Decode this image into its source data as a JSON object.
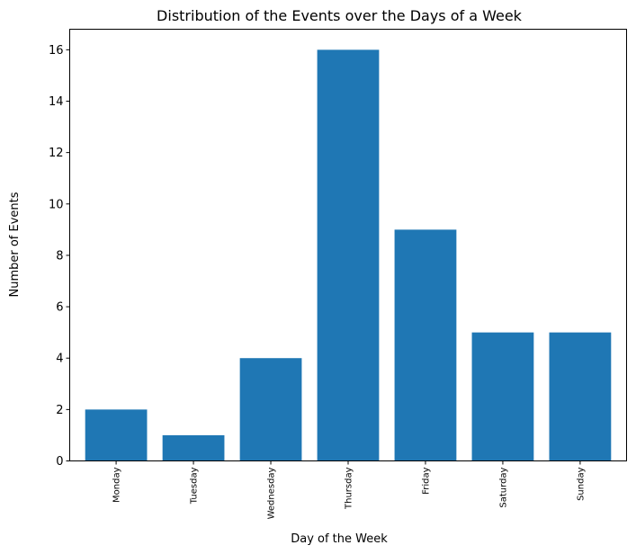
{
  "chart_data": {
    "type": "bar",
    "title": "Distribution of the Events over the Days of a Week",
    "xlabel": "Day of the Week",
    "ylabel": "Number of Events",
    "categories": [
      "Monday",
      "Tuesday",
      "Wednesday",
      "Thursday",
      "Friday",
      "Saturday",
      "Sunday"
    ],
    "values": [
      2,
      1,
      4,
      16,
      9,
      5,
      5
    ],
    "ylim": [
      0,
      16.8
    ],
    "yticks": [
      0,
      2,
      4,
      6,
      8,
      10,
      12,
      14,
      16
    ],
    "bar_color": "#1f77b4",
    "grid": false,
    "xtick_rotation": "vertical"
  }
}
